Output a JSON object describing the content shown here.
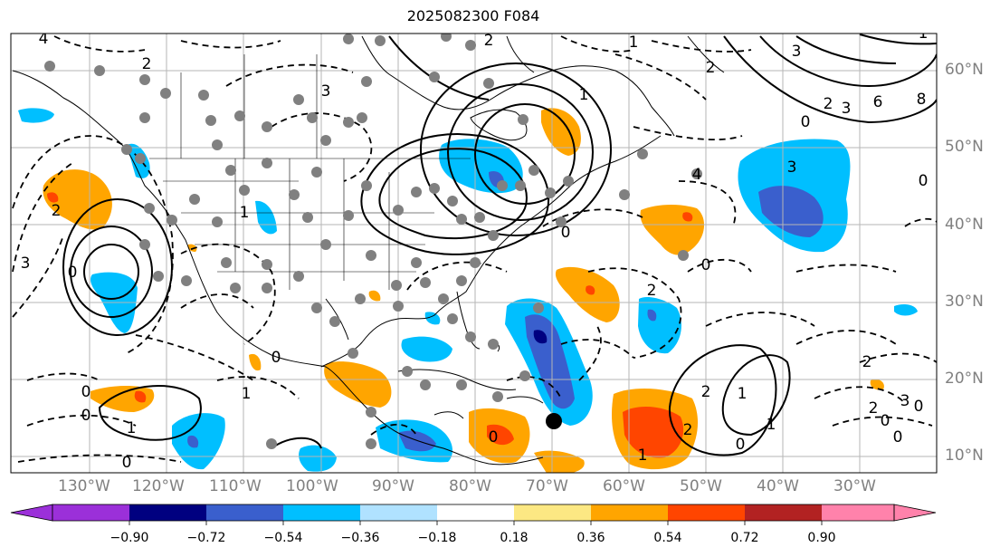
{
  "title": "2025082300 F084",
  "longitude_labels": [
    "130°W",
    "120°W",
    "110°W",
    "100°W",
    "90°W",
    "80°W",
    "70°W",
    "60°W",
    "50°W",
    "40°W",
    "30°W"
  ],
  "latitude_labels": [
    "60°N",
    "50°N",
    "40°N",
    "30°N",
    "20°N",
    "10°N"
  ],
  "colorbar": {
    "ticks": [
      "−0.90",
      "−0.72",
      "−0.54",
      "−0.36",
      "−0.18",
      "0.18",
      "0.36",
      "0.54",
      "0.72",
      "0.90"
    ],
    "colors": [
      "#9b30d9",
      "#000080",
      "#3a5fcd",
      "#00bfff",
      "#b0e2ff",
      "#ffffff",
      "#fce883",
      "#ffa500",
      "#ff4500",
      "#b22222",
      "#ff82ab"
    ]
  },
  "map_layers": {
    "shading_colors": {
      "light_blue": "#00bfff",
      "medium_blue": "#3a5fcd",
      "dark_blue": "#000080",
      "orange": "#ffa500",
      "red_orange": "#ff4500",
      "red": "#b22222"
    },
    "contour_labels": [
      "4",
      "2",
      "1",
      "3",
      "2",
      "3",
      "3",
      "2",
      "2",
      "1",
      "4",
      "6",
      "0",
      "0",
      "1",
      "8",
      "3",
      "0",
      "2",
      "3",
      "1",
      "0",
      "0",
      "2",
      "0",
      "2",
      "1",
      "0",
      "0",
      "1",
      "0",
      "1",
      "2",
      "2",
      "0",
      "2",
      "3",
      "0",
      "1",
      "0",
      "0",
      "1",
      "0"
    ],
    "markers": {
      "station_dot_color": "#808080",
      "center_dot_color": "#000000"
    }
  }
}
